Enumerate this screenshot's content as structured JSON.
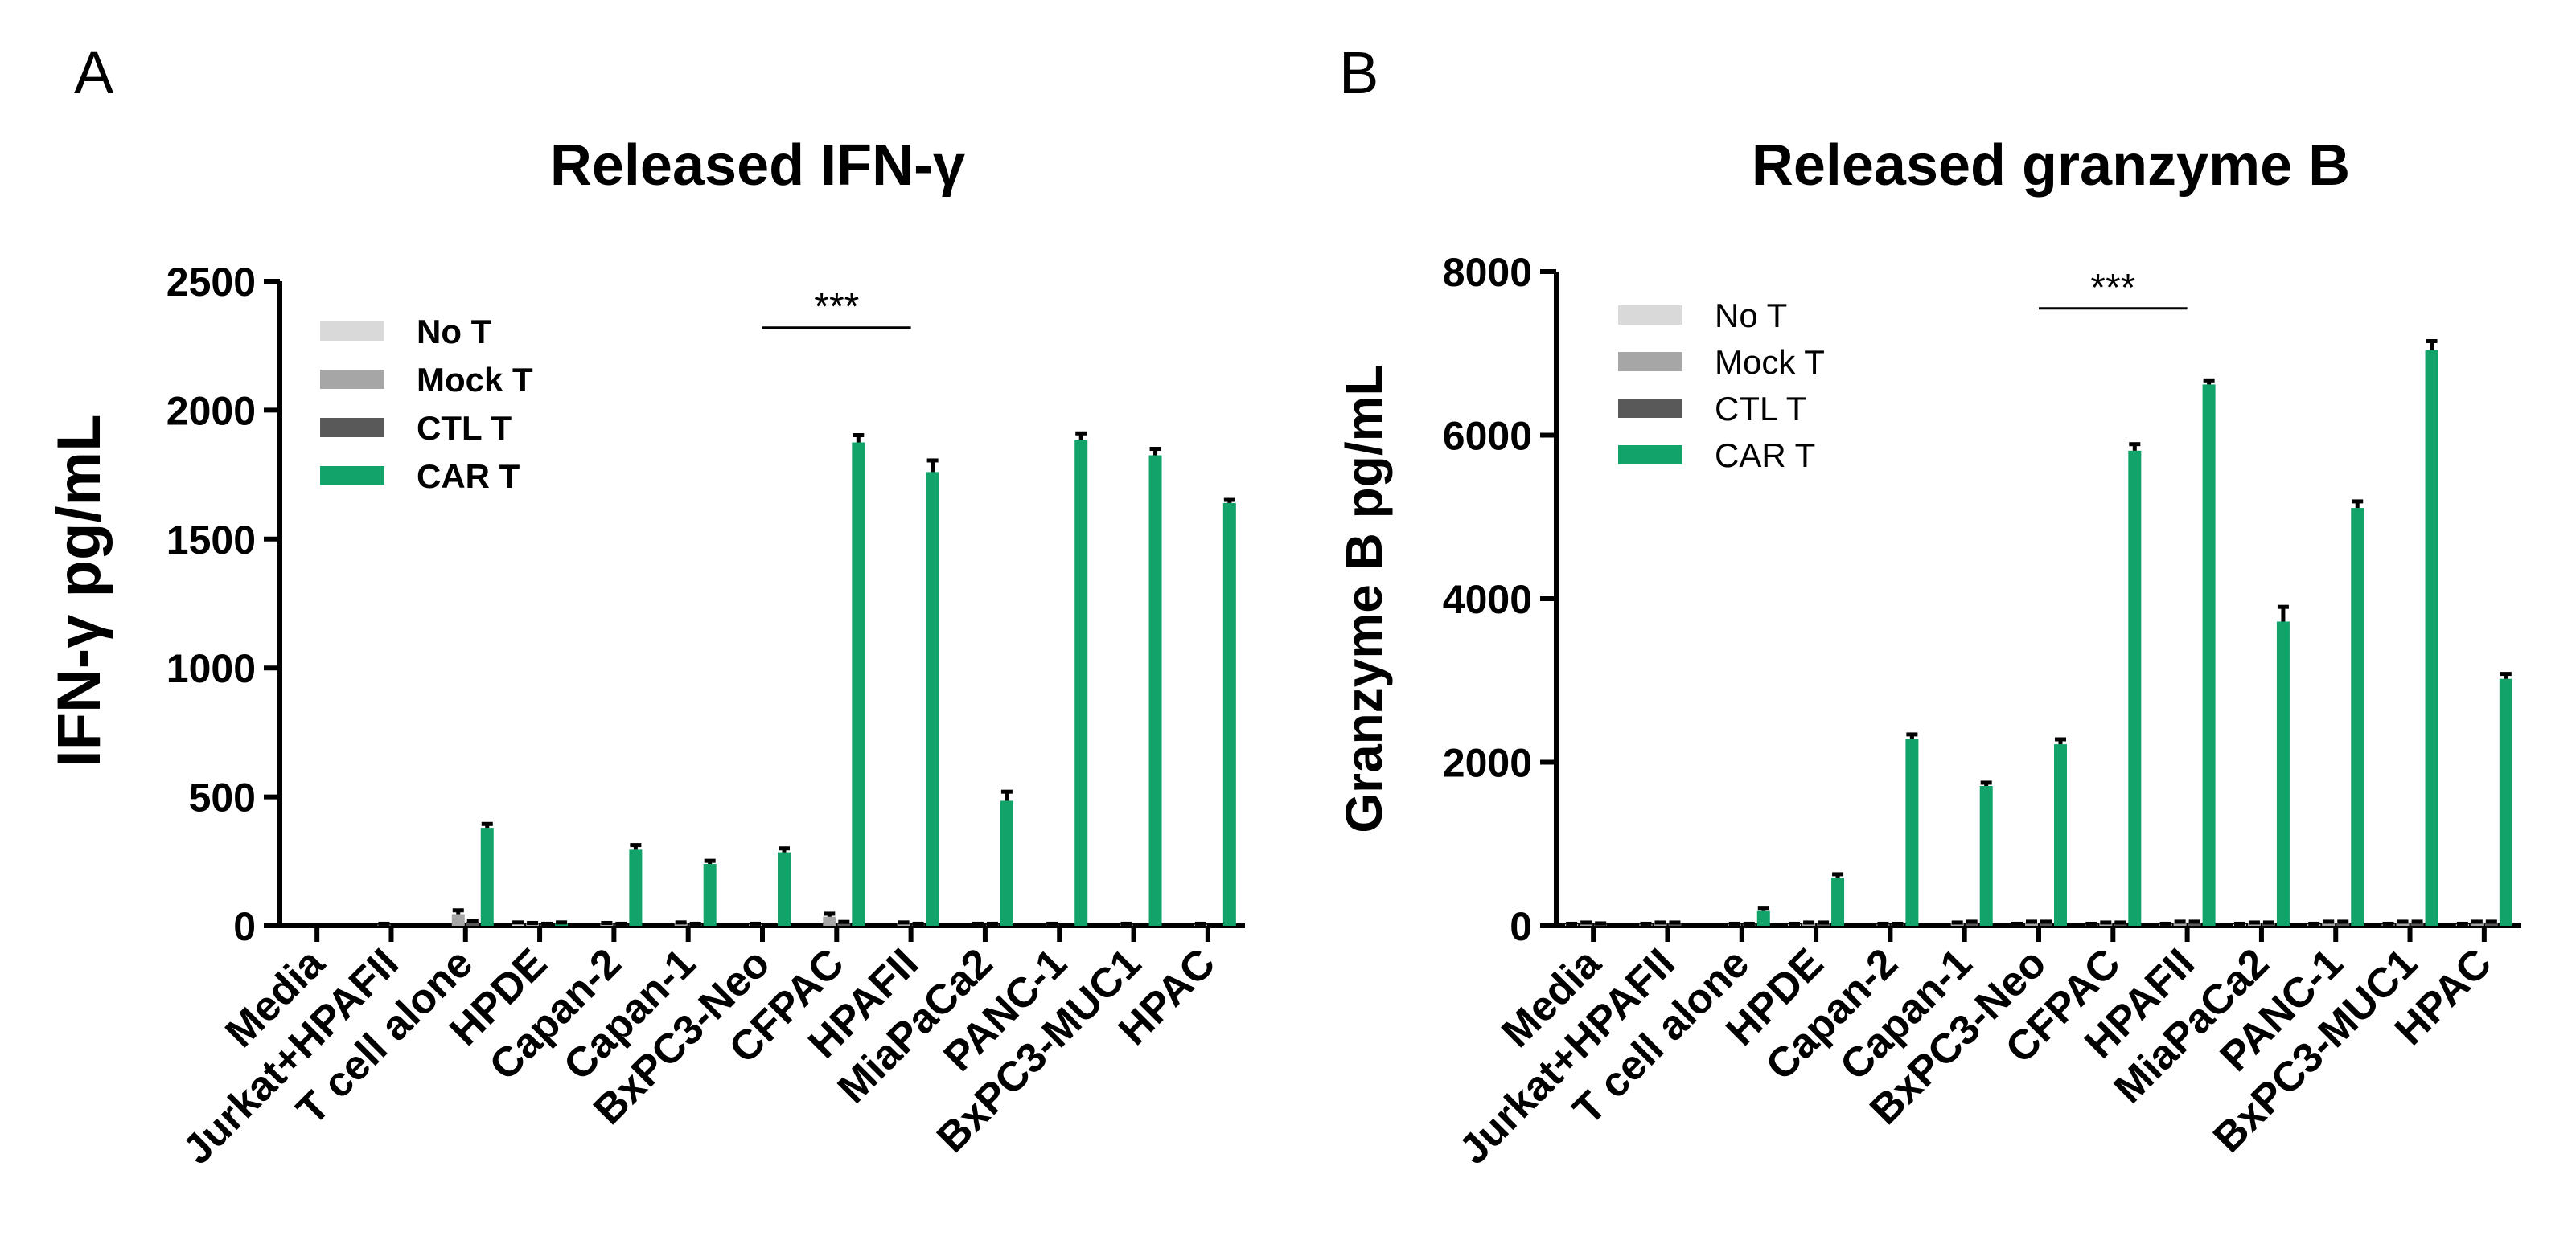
{
  "colors": {
    "no_t": "#d9d9d9",
    "mock_t": "#a6a6a6",
    "ctl_t": "#595959",
    "car_t": "#12a36a",
    "axis": "#000000"
  },
  "chart_data": [
    {
      "panel_label": "A",
      "type": "bar",
      "title": "Released IFN-γ",
      "ylabel": "IFN-γ pg/mL",
      "xlabel": "",
      "ylim": [
        0,
        2500
      ],
      "yticks": [
        "0",
        "500",
        "1000",
        "1500",
        "2000",
        "2500"
      ],
      "ytick_values": [
        0,
        500,
        1000,
        1500,
        2000,
        2500
      ],
      "categories": [
        "Media",
        "Jurkat+HPAFII",
        "T cell alone",
        "HPDE",
        "Capan-2",
        "Capan-1",
        "BxPC3-Neo",
        "CFPAC",
        "HPAFII",
        "MiaPaCa2",
        "PANC-1",
        "BxPC3-MUC1",
        "HPAC"
      ],
      "legend_placement": "top-left",
      "legend_bold": true,
      "series": [
        {
          "name": "No T",
          "color_key": "no_t",
          "values": [
            0,
            0,
            0,
            10,
            0,
            0,
            0,
            0,
            0,
            0,
            0,
            0,
            0
          ],
          "errors": [
            0,
            0,
            0,
            3,
            0,
            0,
            0,
            0,
            0,
            0,
            0,
            0,
            0
          ]
        },
        {
          "name": "Mock T",
          "color_key": "mock_t",
          "values": [
            0,
            5,
            45,
            8,
            8,
            10,
            5,
            35,
            10,
            5,
            5,
            5,
            5
          ],
          "errors": [
            0,
            3,
            15,
            3,
            3,
            3,
            3,
            12,
            3,
            3,
            3,
            3,
            3
          ]
        },
        {
          "name": "CTL T",
          "color_key": "ctl_t",
          "values": [
            0,
            0,
            15,
            5,
            5,
            5,
            0,
            10,
            5,
            5,
            0,
            0,
            0
          ],
          "errors": [
            0,
            0,
            5,
            3,
            3,
            3,
            0,
            5,
            3,
            3,
            0,
            0,
            0
          ]
        },
        {
          "name": "CAR T",
          "color_key": "car_t",
          "values": [
            0,
            0,
            380,
            10,
            295,
            240,
            285,
            1875,
            1760,
            485,
            1885,
            1825,
            1640
          ],
          "errors": [
            0,
            0,
            15,
            3,
            18,
            12,
            15,
            28,
            45,
            35,
            25,
            25,
            12
          ]
        }
      ],
      "significance": {
        "label": "***",
        "from_category": "BxPC3-Neo",
        "to_category": "HPAFII",
        "y_value": 2320
      }
    },
    {
      "panel_label": "B",
      "type": "bar",
      "title": "Released granzyme B",
      "ylabel": "Granzyme B pg/mL",
      "xlabel": "",
      "ylim": [
        0,
        8000
      ],
      "yticks": [
        "0",
        "2000",
        "4000",
        "6000",
        "8000"
      ],
      "ytick_values": [
        0,
        2000,
        4000,
        6000,
        8000
      ],
      "categories": [
        "Media",
        "Jurkat+HPAFII",
        "T cell alone",
        "HPDE",
        "Capan-2",
        "Capan-1",
        "BxPC3-Neo",
        "CFPAC",
        "HPAFII",
        "MiaPaCa2",
        "PANC-1",
        "BxPC3-MUC1",
        "HPAC"
      ],
      "legend_placement": "top-left",
      "legend_bold": false,
      "series": [
        {
          "name": "No T",
          "color_key": "no_t",
          "values": [
            20,
            20,
            0,
            20,
            0,
            0,
            20,
            20,
            20,
            20,
            20,
            20,
            20
          ],
          "errors": [
            5,
            5,
            0,
            5,
            0,
            0,
            5,
            5,
            5,
            5,
            5,
            5,
            5
          ]
        },
        {
          "name": "Mock T",
          "color_key": "mock_t",
          "values": [
            30,
            30,
            20,
            30,
            20,
            30,
            40,
            30,
            40,
            30,
            40,
            40,
            40
          ],
          "errors": [
            10,
            10,
            5,
            10,
            5,
            10,
            10,
            10,
            10,
            10,
            10,
            10,
            10
          ]
        },
        {
          "name": "CTL T",
          "color_key": "ctl_t",
          "values": [
            20,
            30,
            20,
            30,
            20,
            40,
            40,
            30,
            40,
            30,
            40,
            40,
            40
          ],
          "errors": [
            10,
            10,
            5,
            10,
            5,
            10,
            10,
            10,
            10,
            10,
            10,
            10,
            10
          ]
        },
        {
          "name": "CAR T",
          "color_key": "car_t",
          "values": [
            0,
            0,
            180,
            590,
            2280,
            1710,
            2220,
            5810,
            6620,
            3720,
            5110,
            7040,
            3020
          ],
          "errors": [
            0,
            0,
            30,
            40,
            60,
            40,
            60,
            80,
            50,
            180,
            80,
            110,
            60
          ]
        }
      ],
      "significance": {
        "label": "***",
        "from_category": "BxPC3-Neo",
        "to_category": "HPAFII",
        "y_value": 7550
      }
    }
  ]
}
